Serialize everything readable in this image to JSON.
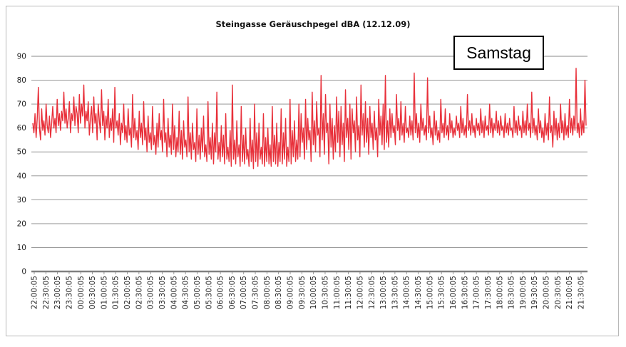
{
  "chart_data": {
    "type": "line",
    "title": "Steingasse Geräuschpegel dBA (12.12.09)",
    "annotation": "Samstag",
    "ylim": [
      0,
      90
    ],
    "y_ticks": [
      "0",
      "10",
      "20",
      "30",
      "40",
      "50",
      "60",
      "70",
      "80",
      "90"
    ],
    "grid": true,
    "line_color": "#e8303a",
    "x_tick_labels": [
      "22:00:05",
      "22:30:05",
      "23:00:05",
      "23:30:05",
      "00:00:05",
      "00:30:05",
      "01:00:05",
      "01:30:05",
      "02:00:05",
      "02:30:05",
      "03:00:05",
      "03:30:05",
      "04:00:05",
      "04:30:05",
      "05:00:05",
      "05:30:05",
      "06:00:05",
      "06:30:05",
      "07:00:05",
      "07:30:05",
      "08:00:05",
      "08:30:05",
      "09:00:05",
      "09:30:05",
      "10:00:05",
      "10:30:05",
      "11:00:05",
      "11:30:05",
      "12:00:05",
      "12:30:05",
      "13:00:05",
      "13:30:05",
      "14:00:05",
      "14:30:05",
      "15:00:05",
      "15:30:05",
      "16:00:05",
      "16:30:05",
      "17:00:05",
      "17:30:05",
      "18:00:05",
      "18:30:05",
      "19:00:05",
      "19:30:05",
      "20:00:05",
      "20:30:05",
      "21:00:05",
      "21:30:05"
    ],
    "series": [
      {
        "values": [
          62,
          58,
          66,
          56,
          64,
          77,
          60,
          55,
          68,
          59,
          63,
          57,
          70,
          61,
          58,
          65,
          56,
          62,
          69,
          60,
          64,
          58,
          72,
          61,
          66,
          59,
          67,
          63,
          75,
          62,
          68,
          60,
          64,
          71,
          58,
          66,
          63,
          73,
          61,
          69,
          66,
          58,
          74,
          62,
          70,
          65,
          78,
          60,
          67,
          63,
          71,
          57,
          64,
          69,
          58,
          73,
          62,
          66,
          55,
          70,
          63,
          58,
          76,
          61,
          67,
          55,
          65,
          60,
          72,
          56,
          64,
          59,
          68,
          54,
          77,
          60,
          63,
          57,
          66,
          53,
          62,
          58,
          70,
          55,
          61,
          54,
          68,
          57,
          60,
          52,
          74,
          56,
          64,
          55,
          59,
          51,
          67,
          56,
          62,
          53,
          71,
          55,
          60,
          50,
          65,
          54,
          58,
          51,
          69,
          53,
          57,
          49,
          62,
          52,
          66,
          55,
          59,
          50,
          72,
          54,
          58,
          48,
          64,
          52,
          57,
          49,
          70,
          51,
          61,
          48,
          56,
          50,
          67,
          49,
          59,
          47,
          63,
          52,
          55,
          48,
          73,
          50,
          58,
          47,
          62,
          51,
          54,
          46,
          68,
          49,
          57,
          47,
          60,
          50,
          65,
          48,
          53,
          46,
          71,
          49,
          56,
          47,
          62,
          45,
          58,
          50,
          75,
          47,
          54,
          46,
          61,
          48,
          57,
          45,
          66,
          47,
          52,
          46,
          59,
          44,
          78,
          47,
          55,
          45,
          63,
          48,
          53,
          44,
          69,
          46,
          57,
          45,
          60,
          47,
          51,
          44,
          64,
          46,
          55,
          43,
          70,
          46,
          58,
          44,
          62,
          47,
          52,
          45,
          66,
          44,
          56,
          46,
          60,
          45,
          53,
          44,
          69,
          46,
          57,
          45,
          62,
          44,
          54,
          46,
          68,
          45,
          58,
          47,
          64,
          44,
          52,
          46,
          72,
          45,
          59,
          48,
          63,
          46,
          55,
          47,
          70,
          48,
          66,
          54,
          60,
          47,
          72,
          51,
          64,
          55,
          59,
          46,
          75,
          53,
          63,
          50,
          71,
          57,
          60,
          48,
          82,
          55,
          66,
          49,
          74,
          58,
          62,
          45,
          70,
          52,
          64,
          47,
          61,
          50,
          73,
          54,
          67,
          48,
          69,
          53,
          62,
          46,
          76,
          56,
          64,
          51,
          70,
          47,
          68,
          58,
          63,
          50,
          73,
          55,
          61,
          48,
          78,
          57,
          66,
          52,
          71,
          54,
          64,
          49,
          69,
          56,
          62,
          51,
          67,
          55,
          60,
          48,
          72,
          57,
          65,
          53,
          70,
          51,
          82,
          54,
          63,
          52,
          68,
          56,
          66,
          58,
          61,
          53,
          74,
          59,
          64,
          55,
          71,
          57,
          62,
          54,
          69,
          58,
          60,
          56,
          65,
          57,
          63,
          55,
          83,
          58,
          66,
          56,
          62,
          54,
          70,
          59,
          64,
          57,
          61,
          55,
          81,
          58,
          65,
          56,
          60,
          53,
          67,
          57,
          63,
          55,
          59,
          54,
          72,
          58,
          62,
          56,
          68,
          57,
          61,
          55,
          66,
          58,
          63,
          56,
          60,
          57,
          65,
          59,
          62,
          56,
          69,
          58,
          64,
          57,
          61,
          56,
          74,
          59,
          63,
          57,
          66,
          58,
          61,
          56,
          64,
          59,
          62,
          57,
          68,
          58,
          63,
          56,
          65,
          59,
          61,
          57,
          70,
          58,
          64,
          56,
          62,
          59,
          67,
          58,
          63,
          57,
          65,
          59,
          61,
          56,
          66,
          58,
          62,
          57,
          64,
          59,
          60,
          56,
          69,
          58,
          63,
          57,
          65,
          59,
          61,
          56,
          67,
          58,
          63,
          57,
          70,
          59,
          62,
          56,
          75,
          58,
          64,
          57,
          61,
          55,
          68,
          58,
          63,
          56,
          60,
          54,
          66,
          57,
          62,
          55,
          73,
          58,
          61,
          52,
          67,
          57,
          64,
          55,
          62,
          56,
          70,
          58,
          63,
          55,
          66,
          57,
          61,
          56,
          72,
          58,
          64,
          57,
          65,
          59,
          85,
          58,
          62,
          56,
          68,
          57,
          63,
          58,
          80,
          61
        ]
      }
    ]
  }
}
